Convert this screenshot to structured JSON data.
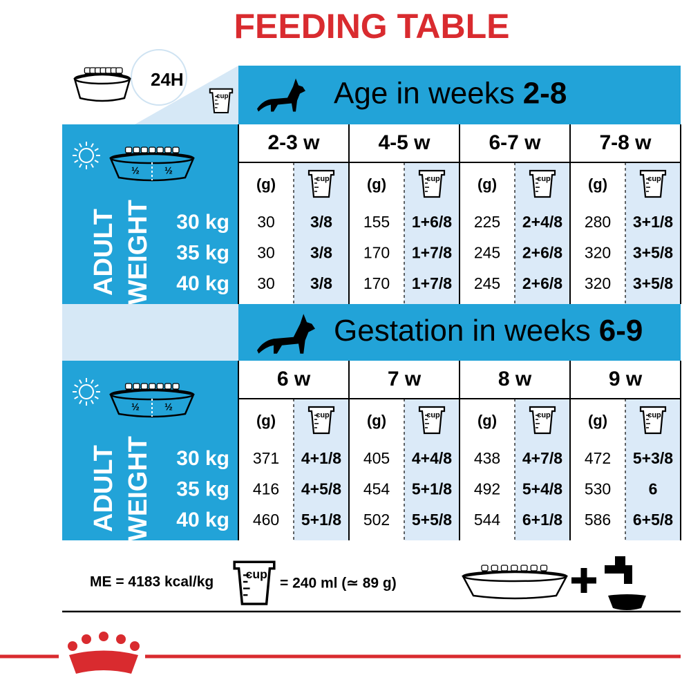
{
  "title": "FEEDING TABLE",
  "period": "24H",
  "unit_labels": {
    "grams": "(g)",
    "cup": "cup",
    "half": "½"
  },
  "weight_label": [
    "ADULT",
    "WEIGHT"
  ],
  "sections": [
    {
      "heading": "Age in weeks",
      "range": "2-8",
      "columns": [
        "2-3 w",
        "4-5 w",
        "6-7 w",
        "7-8 w"
      ],
      "rows": [
        {
          "weight": "30 kg",
          "cells": [
            [
              30,
              "3/8"
            ],
            [
              155,
              "1+6/8"
            ],
            [
              225,
              "2+4/8"
            ],
            [
              280,
              "3+1/8"
            ]
          ]
        },
        {
          "weight": "35 kg",
          "cells": [
            [
              30,
              "3/8"
            ],
            [
              170,
              "1+7/8"
            ],
            [
              245,
              "2+6/8"
            ],
            [
              320,
              "3+5/8"
            ]
          ]
        },
        {
          "weight": "40 kg",
          "cells": [
            [
              30,
              "3/8"
            ],
            [
              170,
              "1+7/8"
            ],
            [
              245,
              "2+6/8"
            ],
            [
              320,
              "3+5/8"
            ]
          ]
        }
      ]
    },
    {
      "heading": "Gestation in weeks",
      "range": "6-9",
      "columns": [
        "6 w",
        "7 w",
        "8 w",
        "9 w"
      ],
      "rows": [
        {
          "weight": "30 kg",
          "cells": [
            [
              371,
              "4+1/8"
            ],
            [
              405,
              "4+4/8"
            ],
            [
              438,
              "4+7/8"
            ],
            [
              472,
              "5+3/8"
            ]
          ]
        },
        {
          "weight": "35 kg",
          "cells": [
            [
              416,
              "4+5/8"
            ],
            [
              454,
              "5+1/8"
            ],
            [
              492,
              "5+4/8"
            ],
            [
              530,
              "6"
            ]
          ]
        },
        {
          "weight": "40 kg",
          "cells": [
            [
              460,
              "5+1/8"
            ],
            [
              502,
              "5+5/8"
            ],
            [
              544,
              "6+1/8"
            ],
            [
              586,
              "6+5/8"
            ]
          ]
        }
      ]
    }
  ],
  "footer": {
    "energy": "ME = 4183 kcal/kg",
    "cup_equiv": "= 240 ml (≃ 89 g)"
  }
}
